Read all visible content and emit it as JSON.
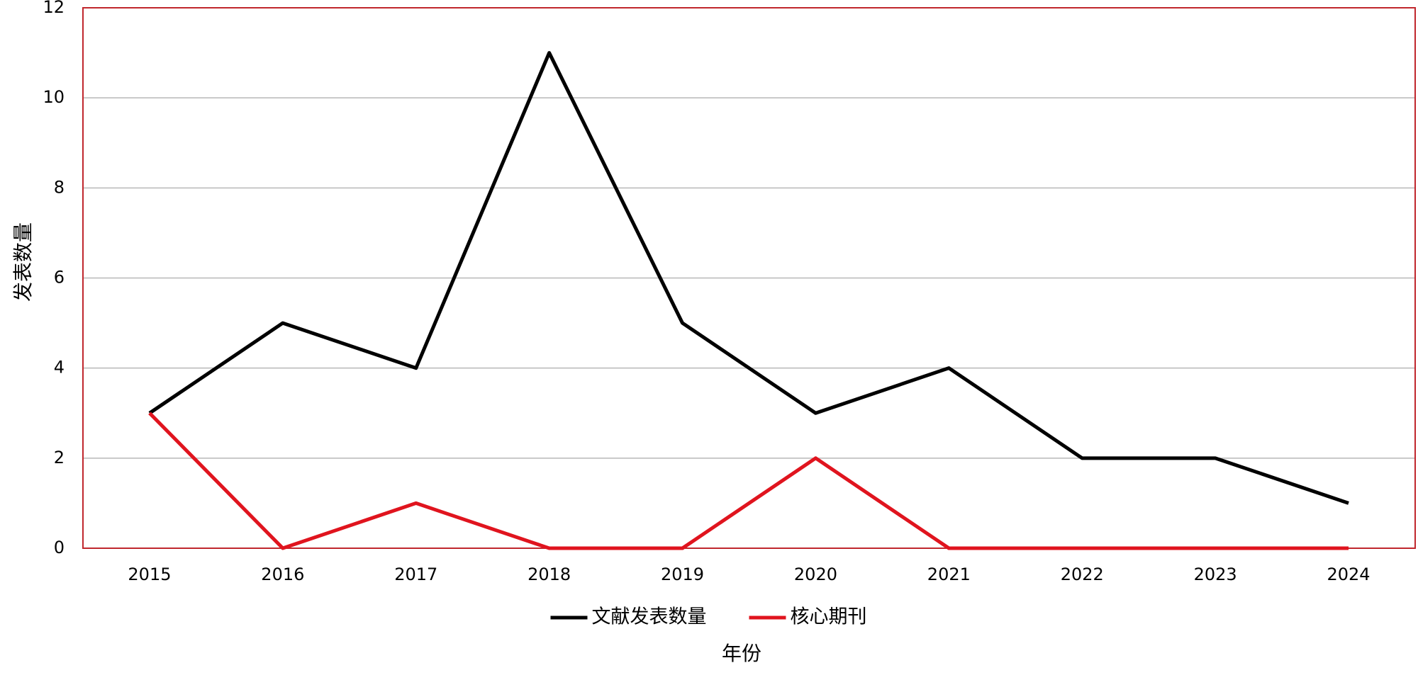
{
  "chart_data": {
    "type": "line",
    "x_label": "年份",
    "y_label": "发表数量",
    "categories": [
      "2015",
      "2016",
      "2017",
      "2018",
      "2019",
      "2020",
      "2021",
      "2022",
      "2023",
      "2024"
    ],
    "series": [
      {
        "name": "文献发表数量",
        "color": "#000000",
        "values": [
          3,
          5,
          4,
          11,
          5,
          3,
          4,
          2,
          2,
          1
        ]
      },
      {
        "name": "核心期刊",
        "color": "#e0141e",
        "values": [
          3,
          0,
          1,
          0,
          0,
          2,
          0,
          0,
          0,
          0
        ]
      }
    ],
    "ylim": [
      0,
      12
    ],
    "yticks": [
      0,
      2,
      4,
      6,
      8,
      10,
      12
    ],
    "grid": true,
    "legend": "bottom",
    "frame_color": "#c0272d"
  }
}
